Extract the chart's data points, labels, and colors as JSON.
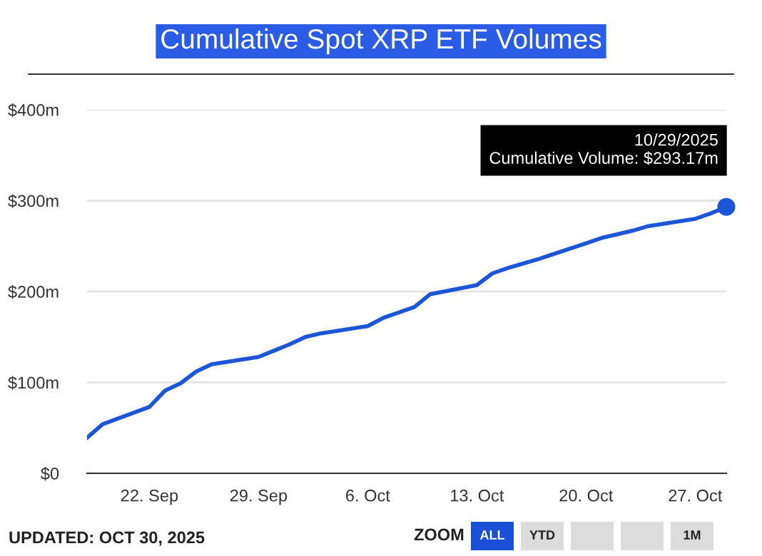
{
  "chart_data": {
    "type": "line",
    "title": "Cumulative Spot XRP ETF Volumes",
    "x": [
      "2025-09-18",
      "2025-09-19",
      "2025-09-22",
      "2025-09-23",
      "2025-09-24",
      "2025-09-25",
      "2025-09-26",
      "2025-09-29",
      "2025-09-30",
      "2025-10-01",
      "2025-10-02",
      "2025-10-03",
      "2025-10-06",
      "2025-10-07",
      "2025-10-08",
      "2025-10-09",
      "2025-10-10",
      "2025-10-13",
      "2025-10-14",
      "2025-10-15",
      "2025-10-16",
      "2025-10-17",
      "2025-10-20",
      "2025-10-21",
      "2025-10-22",
      "2025-10-23",
      "2025-10-24",
      "2025-10-27",
      "2025-10-28",
      "2025-10-29"
    ],
    "series": [
      {
        "color": "#1a56d6",
        "values": [
          39,
          54,
          73,
          91,
          99,
          112,
          120,
          128,
          135,
          142,
          150,
          154,
          162,
          171,
          177,
          183,
          197,
          207,
          220,
          226,
          231,
          236,
          253,
          259,
          263,
          267,
          272,
          280,
          286,
          293.17
        ]
      }
    ],
    "xlim": [
      "2025-09-18",
      "2025-10-29"
    ],
    "xticks": [
      {
        "value": "2025-09-22",
        "label": "22. Sep"
      },
      {
        "value": "2025-09-29",
        "label": "29. Sep"
      },
      {
        "value": "2025-10-06",
        "label": "6. Oct"
      },
      {
        "value": "2025-10-13",
        "label": "13. Oct"
      },
      {
        "value": "2025-10-20",
        "label": "20. Oct"
      },
      {
        "value": "2025-10-27",
        "label": "27. Oct"
      }
    ],
    "ylim": [
      0,
      400
    ],
    "yticks": [
      {
        "value": 0,
        "label": "$0"
      },
      {
        "value": 100,
        "label": "$100m"
      },
      {
        "value": 200,
        "label": "$200m"
      },
      {
        "value": 300,
        "label": "$300m"
      },
      {
        "value": 400,
        "label": "$400m"
      }
    ],
    "grid": "y",
    "legend": false,
    "marker": "none",
    "line_style": "solid",
    "annotations": [
      {
        "text": "10/29/2025\nCumulative Volume: $293.17m",
        "x": "2025-10-29",
        "y": 293.17
      },
      "UPDATED: OCT 30, 2025",
      "ZOOM",
      "ALL",
      "YTD",
      "1M"
    ]
  }
}
